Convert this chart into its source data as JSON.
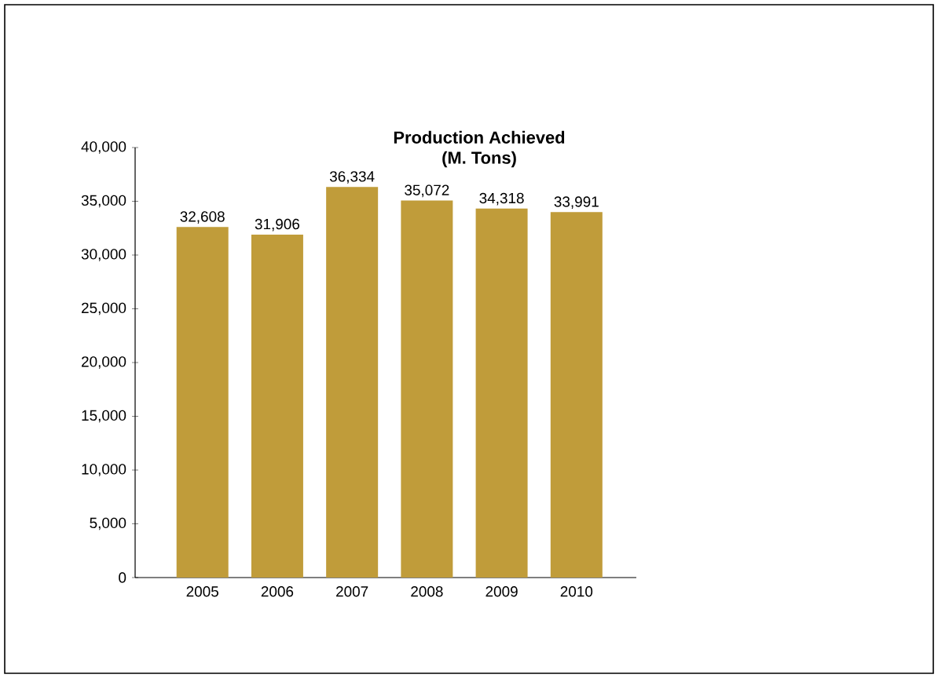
{
  "chart_data": {
    "type": "bar",
    "title": "Production Achieved\n(M. Tons)",
    "categories": [
      "2005",
      "2006",
      "2007",
      "2008",
      "2009",
      "2010"
    ],
    "values": [
      32608,
      31906,
      36334,
      35072,
      34318,
      33991
    ],
    "value_labels": [
      "32,608",
      "31,906",
      "36,334",
      "35,072",
      "34,318",
      "33,991"
    ],
    "color": "#c09c3a",
    "ylim": [
      0,
      40000
    ],
    "yticks": [
      0,
      {
        "value": 5000,
        "label": "5,000"
      },
      {
        "value": 10000,
        "label": "10,000"
      },
      {
        "value": 15000,
        "label": "15,000"
      },
      {
        "value": 20000,
        "label": "20,000"
      },
      {
        "value": 25000,
        "label": "25,000"
      },
      {
        "value": 30000,
        "label": "30,000"
      },
      {
        "value": 35000,
        "label": "35,000"
      },
      {
        "value": 40000,
        "label": "40,000"
      }
    ],
    "grid": false
  }
}
